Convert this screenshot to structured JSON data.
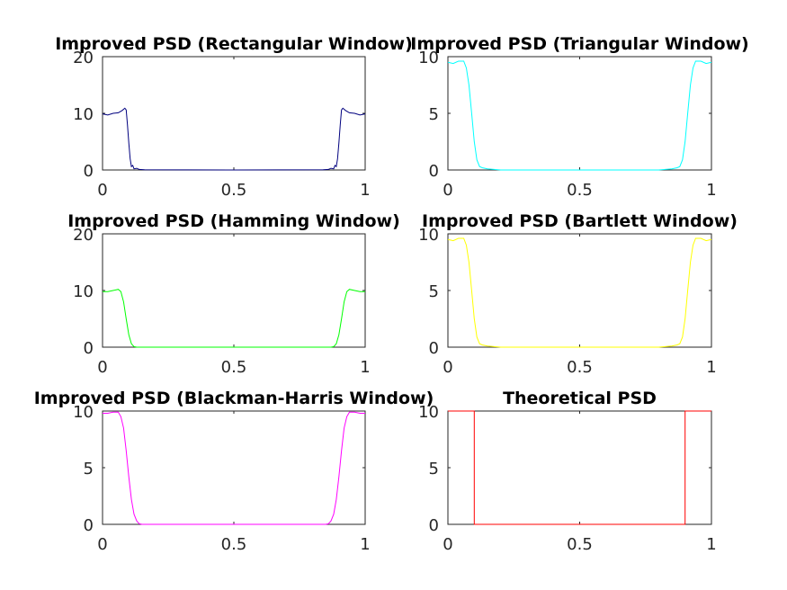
{
  "chart_data": [
    {
      "type": "line",
      "title": "Improved PSD (Rectangular Window)",
      "color": "#00007f",
      "xlim": [
        0,
        1
      ],
      "ylim": [
        0,
        20
      ],
      "xticks": [
        "0",
        "0.5",
        "1"
      ],
      "yticks": [
        "0",
        "10",
        "20"
      ],
      "series": [
        {
          "x": [
            0,
            0.02,
            0.04,
            0.06,
            0.075,
            0.085,
            0.09,
            0.095,
            0.1,
            0.105,
            0.11,
            0.115,
            0.12,
            0.13,
            0.14,
            0.16,
            0.5,
            0.84,
            0.86,
            0.87,
            0.88,
            0.885,
            0.89,
            0.895,
            0.9,
            0.905,
            0.91,
            0.915,
            0.925,
            0.94,
            0.96,
            0.98,
            1
          ],
          "y": [
            9.9,
            9.7,
            10.0,
            10.1,
            10.5,
            10.9,
            10.6,
            8.0,
            4.8,
            2.0,
            0.6,
            0.8,
            0.2,
            0.3,
            0.1,
            0.05,
            0.0,
            0.05,
            0.1,
            0.3,
            0.2,
            0.8,
            0.6,
            2.0,
            4.8,
            8.0,
            10.6,
            10.9,
            10.5,
            10.1,
            10.0,
            9.7,
            9.9
          ]
        }
      ]
    },
    {
      "type": "line",
      "title": "Improved PSD (Triangular Window)",
      "color": "#00ffff",
      "xlim": [
        0,
        1
      ],
      "ylim": [
        0,
        10
      ],
      "xticks": [
        "0",
        "0.5",
        "1"
      ],
      "yticks": [
        "0",
        "5",
        "10"
      ],
      "series": [
        {
          "x": [
            0,
            0.02,
            0.04,
            0.06,
            0.07,
            0.08,
            0.09,
            0.1,
            0.11,
            0.12,
            0.13,
            0.15,
            0.2,
            0.5,
            0.8,
            0.85,
            0.87,
            0.88,
            0.89,
            0.9,
            0.91,
            0.92,
            0.93,
            0.94,
            0.96,
            0.98,
            1
          ],
          "y": [
            9.5,
            9.4,
            9.6,
            9.6,
            9.0,
            7.5,
            5.0,
            2.5,
            0.9,
            0.3,
            0.2,
            0.1,
            0.0,
            0.0,
            0.0,
            0.1,
            0.2,
            0.3,
            0.9,
            2.5,
            5.0,
            7.5,
            9.0,
            9.6,
            9.6,
            9.4,
            9.5
          ]
        }
      ]
    },
    {
      "type": "line",
      "title": "Improved PSD (Hamming Window)",
      "color": "#00ff00",
      "xlim": [
        0,
        1
      ],
      "ylim": [
        0,
        20
      ],
      "xticks": [
        "0",
        "0.5",
        "1"
      ],
      "yticks": [
        "0",
        "10",
        "20"
      ],
      "series": [
        {
          "x": [
            0,
            0.02,
            0.04,
            0.06,
            0.07,
            0.08,
            0.09,
            0.1,
            0.11,
            0.12,
            0.13,
            0.5,
            0.87,
            0.88,
            0.89,
            0.9,
            0.91,
            0.92,
            0.93,
            0.94,
            0.96,
            0.98,
            1
          ],
          "y": [
            9.8,
            9.8,
            10.0,
            10.2,
            9.8,
            8.0,
            5.0,
            2.2,
            0.6,
            0.1,
            0.0,
            0.0,
            0.0,
            0.1,
            0.6,
            2.2,
            5.0,
            8.0,
            9.8,
            10.2,
            10.0,
            9.8,
            9.8
          ]
        }
      ]
    },
    {
      "type": "line",
      "title": "Improved PSD (Bartlett Window)",
      "color": "#ffff00",
      "xlim": [
        0,
        1
      ],
      "ylim": [
        0,
        10
      ],
      "xticks": [
        "0",
        "0.5",
        "1"
      ],
      "yticks": [
        "0",
        "5",
        "10"
      ],
      "series": [
        {
          "x": [
            0,
            0.02,
            0.04,
            0.06,
            0.07,
            0.08,
            0.09,
            0.1,
            0.11,
            0.12,
            0.13,
            0.15,
            0.2,
            0.5,
            0.8,
            0.85,
            0.87,
            0.88,
            0.89,
            0.9,
            0.91,
            0.92,
            0.93,
            0.94,
            0.96,
            0.98,
            1
          ],
          "y": [
            9.5,
            9.4,
            9.6,
            9.6,
            9.0,
            7.5,
            5.0,
            2.5,
            0.9,
            0.3,
            0.2,
            0.1,
            0.0,
            0.0,
            0.0,
            0.1,
            0.2,
            0.3,
            0.9,
            2.5,
            5.0,
            7.5,
            9.0,
            9.6,
            9.6,
            9.4,
            9.5
          ]
        }
      ]
    },
    {
      "type": "line",
      "title": "Improved PSD (Blackman-Harris Window)",
      "color": "#ff00ff",
      "xlim": [
        0,
        1
      ],
      "ylim": [
        0,
        10
      ],
      "xticks": [
        "0",
        "0.5",
        "1"
      ],
      "yticks": [
        "0",
        "5",
        "10"
      ],
      "series": [
        {
          "x": [
            0,
            0.02,
            0.04,
            0.06,
            0.07,
            0.08,
            0.09,
            0.1,
            0.11,
            0.12,
            0.13,
            0.14,
            0.15,
            0.5,
            0.85,
            0.86,
            0.87,
            0.88,
            0.89,
            0.9,
            0.91,
            0.92,
            0.93,
            0.94,
            0.96,
            0.98,
            1
          ],
          "y": [
            9.8,
            9.8,
            9.9,
            9.9,
            9.5,
            8.5,
            6.5,
            4.2,
            2.2,
            0.9,
            0.3,
            0.05,
            0.0,
            0.0,
            0.0,
            0.05,
            0.3,
            0.9,
            2.2,
            4.2,
            6.5,
            8.5,
            9.5,
            9.9,
            9.9,
            9.8,
            9.8
          ]
        }
      ]
    },
    {
      "type": "line",
      "title": "Theoretical PSD",
      "color": "#ff0000",
      "xlim": [
        0,
        1
      ],
      "ylim": [
        0,
        10
      ],
      "xticks": [
        "0",
        "0.5",
        "1"
      ],
      "yticks": [
        "0",
        "5",
        "10"
      ],
      "series": [
        {
          "x": [
            0,
            0.1,
            0.1,
            0.9,
            0.9,
            1
          ],
          "y": [
            10,
            10,
            0,
            0,
            10,
            10
          ]
        }
      ]
    }
  ]
}
